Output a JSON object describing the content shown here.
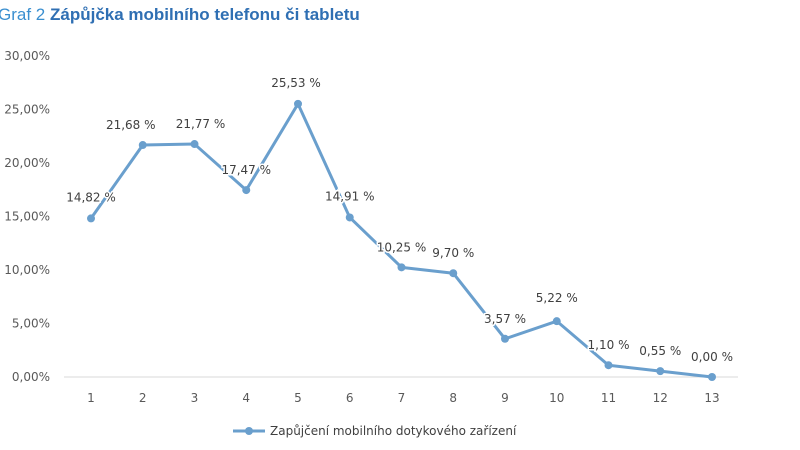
{
  "header": {
    "title_prefix": "Graf 2",
    "title_main": "Zápůjčka mobilního telefonu či tabletu"
  },
  "colors": {
    "series": "#6a9fcd",
    "title_prefix": "#3a8fd0",
    "title_main": "#2f6fb3",
    "axis_text": "#595959",
    "axis_line": "#d9d9d9"
  },
  "chart_data": {
    "type": "line",
    "title": "Zápůjčka mobilního telefonu či tabletu",
    "categories": [
      "1",
      "2",
      "3",
      "4",
      "5",
      "6",
      "7",
      "8",
      "9",
      "10",
      "11",
      "12",
      "13"
    ],
    "series": [
      {
        "name": "Zapůjčení mobilního dotykového zařízení",
        "values": [
          14.82,
          21.68,
          21.77,
          17.47,
          25.53,
          14.91,
          10.25,
          9.7,
          3.57,
          5.22,
          1.1,
          0.55,
          0.0
        ],
        "labels": [
          "14,82 %",
          "21,68 %",
          "21,77 %",
          "17,47 %",
          "25,53 %",
          "14,91 %",
          "10,25 %",
          "9,70 %",
          "3,57 %",
          "5,22 %",
          "1,10 %",
          "0,55 %",
          "0,00 %"
        ]
      }
    ],
    "ylim": [
      0,
      30
    ],
    "yticks": [
      0,
      5,
      10,
      15,
      20,
      25,
      30
    ],
    "ytick_labels": [
      "0,00%",
      "5,00%",
      "10,00%",
      "15,00%",
      "20,00%",
      "25,00%",
      "30,00%"
    ],
    "xlabel": "",
    "ylabel": "",
    "grid": false,
    "legend": "bottom"
  }
}
